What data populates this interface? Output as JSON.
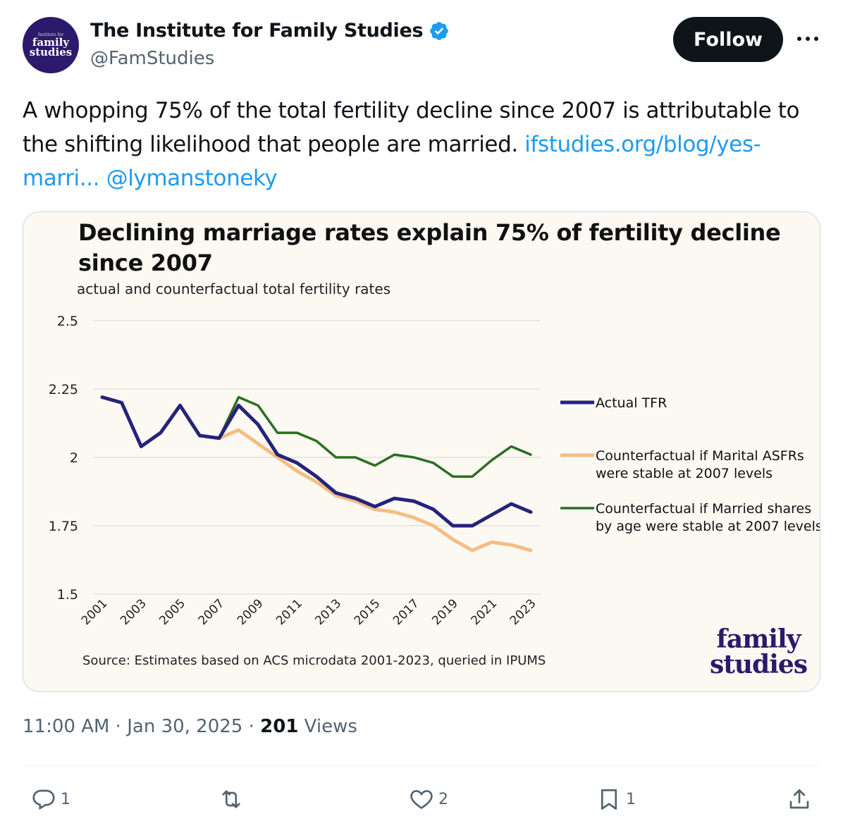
{
  "author": {
    "avatar_small": "Institute for",
    "avatar_line1": "family",
    "avatar_line2": "studies",
    "name": "The Institute for Family Studies",
    "handle": "@FamStudies",
    "verified_color": "#1d9bf0"
  },
  "follow_label": "Follow",
  "more_icon": "more-dots-icon",
  "tweet": {
    "text": "A whopping 75% of the total fertility decline since 2007 is attributable to the shifting likelihood that people are married.",
    "link": "ifstudies.org/blog/yes-marri...",
    "mention": "@lymanstoneky"
  },
  "chart": {
    "source": "Source: Estimates based on ACS microdata 2001-2023, queried in IPUMS",
    "logo_line1": "family",
    "logo_line2": "studies"
  },
  "chart_data": {
    "type": "line",
    "title": "Declining marriage rates explain 75% of fertility decline since 2007",
    "subtitle": "actual and counterfactual total fertility rates",
    "ylim": [
      1.5,
      2.5
    ],
    "yticks": [
      "2.5",
      "2.25",
      "2",
      "1.75",
      "1.5"
    ],
    "ytick_values": [
      2.5,
      2.25,
      2.0,
      1.75,
      1.5
    ],
    "xticks": [
      "2001",
      "2003",
      "2005",
      "2007",
      "2009",
      "2011",
      "2013",
      "2015",
      "2017",
      "2019",
      "2021",
      "2023"
    ],
    "grid": true,
    "legend_position": "right",
    "series": [
      {
        "name": "Actual TFR",
        "color": "#25237a",
        "x": [
          2001,
          2002,
          2003,
          2004,
          2005,
          2006,
          2007,
          2008,
          2009,
          2010,
          2011,
          2012,
          2013,
          2014,
          2015,
          2016,
          2017,
          2018,
          2019,
          2020,
          2021,
          2022,
          2023
        ],
        "values": [
          2.22,
          2.2,
          2.04,
          2.09,
          2.19,
          2.08,
          2.07,
          2.19,
          2.12,
          2.01,
          1.98,
          1.93,
          1.87,
          1.85,
          1.82,
          1.85,
          1.84,
          1.81,
          1.75,
          1.75,
          1.79,
          1.83,
          1.8
        ]
      },
      {
        "name": "Counterfactual if Marital ASFRs were stable at 2007 levels",
        "color": "#f5bd84",
        "x": [
          2007,
          2008,
          2009,
          2010,
          2011,
          2012,
          2013,
          2014,
          2015,
          2016,
          2017,
          2018,
          2019,
          2020,
          2021,
          2022,
          2023
        ],
        "values": [
          2.07,
          2.1,
          2.05,
          2.0,
          1.95,
          1.91,
          1.86,
          1.84,
          1.81,
          1.8,
          1.78,
          1.75,
          1.7,
          1.66,
          1.69,
          1.68,
          1.66
        ]
      },
      {
        "name": "Counterfactual if Married shares by age were stable at 2007 levels",
        "color": "#2c6e1f",
        "x": [
          2007,
          2008,
          2009,
          2010,
          2011,
          2012,
          2013,
          2014,
          2015,
          2016,
          2017,
          2018,
          2019,
          2020,
          2021,
          2022,
          2023
        ],
        "values": [
          2.07,
          2.22,
          2.19,
          2.09,
          2.09,
          2.06,
          2.0,
          2.0,
          1.97,
          2.01,
          2.0,
          1.98,
          1.93,
          1.93,
          1.99,
          2.04,
          2.01
        ]
      }
    ],
    "legend": [
      {
        "line1": "Actual TFR",
        "line2": ""
      },
      {
        "line1": "Counterfactual if Marital ASFRs",
        "line2": "were stable at 2007 levels"
      },
      {
        "line1": "Counterfactual if Married shares",
        "line2": "by age were stable at 2007 levels"
      }
    ]
  },
  "timestamp": {
    "time": "11:00 AM",
    "sep1": " · ",
    "date": "Jan 30, 2025",
    "sep2": " · ",
    "views": "201",
    "views_label": " Views"
  },
  "actions": {
    "reply_count": "1",
    "repost_count": "",
    "like_count": "2",
    "bookmark_count": "1"
  }
}
